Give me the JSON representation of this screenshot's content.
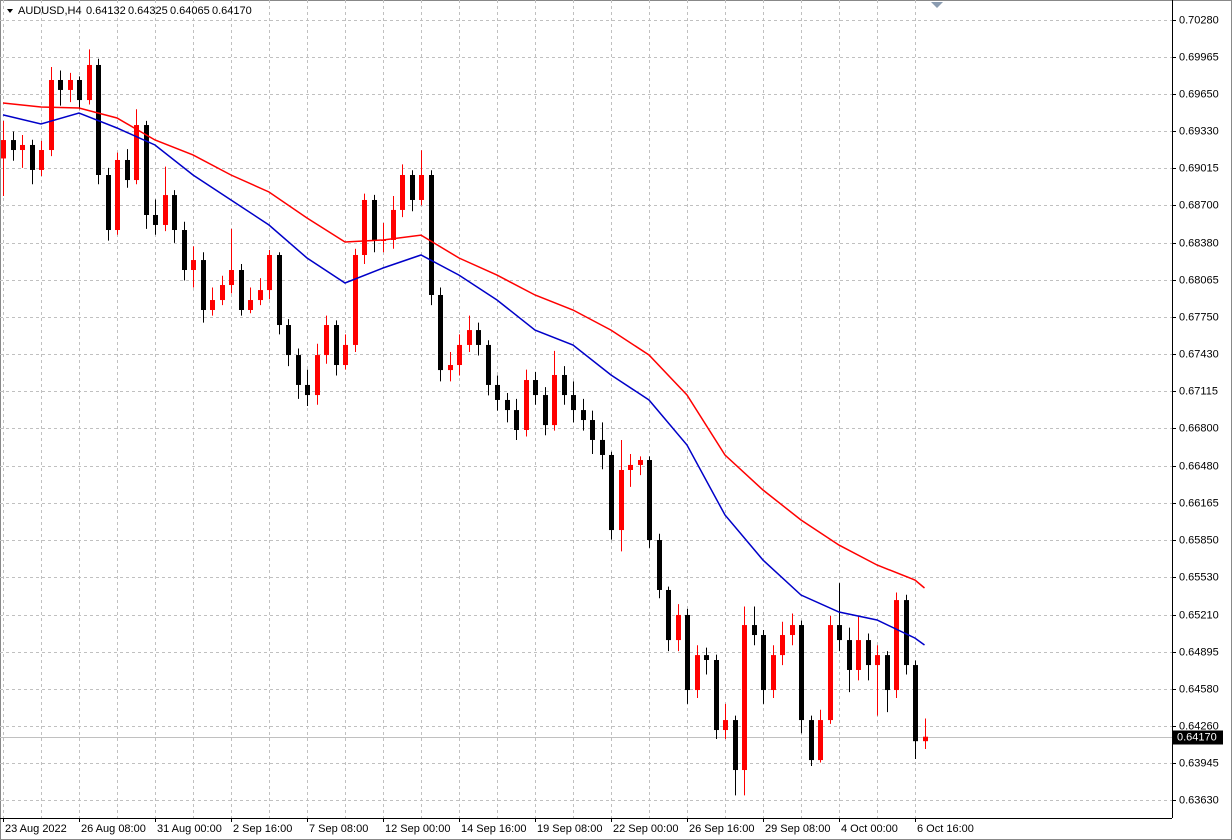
{
  "chart_data": {
    "type": "candlestick",
    "title": "AUDUSD,H4",
    "current_price": {
      "value": 0.6417,
      "label": "0.64170"
    },
    "bull_color": "#ff0000",
    "bear_color": "#000000",
    "grid": true,
    "ylim": [
      0.63477,
      0.70451
    ],
    "yticks": [
      {
        "value": 0.7028,
        "label": "0.70280"
      },
      0.69965,
      {
        "value": 0.6965,
        "label": "0.69650"
      },
      {
        "value": 0.6933,
        "label": "0.69330"
      },
      0.69015,
      {
        "value": 0.687,
        "label": "0.68700"
      },
      {
        "value": 0.6838,
        "label": "0.68380"
      },
      0.68065,
      {
        "value": 0.6775,
        "label": "0.67750"
      },
      {
        "value": 0.6743,
        "label": "0.67430"
      },
      0.67115,
      {
        "value": 0.668,
        "label": "0.66800"
      },
      {
        "value": 0.6648,
        "label": "0.66480"
      },
      0.66165,
      {
        "value": 0.6585,
        "label": "0.65850"
      },
      {
        "value": 0.6553,
        "label": "0.65530"
      },
      {
        "value": 0.6521,
        "label": "0.65210"
      },
      0.64895,
      {
        "value": 0.6458,
        "label": "0.64580"
      },
      {
        "value": 0.6426,
        "label": "0.64260"
      },
      0.63945,
      {
        "value": 0.6363,
        "label": "0.63630"
      }
    ],
    "categories": [
      "23 Aug 2022",
      null,
      null,
      null,
      null,
      null,
      null,
      null,
      "26 Aug 08:00",
      null,
      null,
      null,
      null,
      null,
      null,
      null,
      "31 Aug 00:00",
      null,
      null,
      null,
      null,
      null,
      null,
      null,
      "2 Sep 16:00",
      null,
      null,
      null,
      null,
      null,
      null,
      null,
      "7 Sep 08:00",
      null,
      null,
      null,
      null,
      null,
      null,
      null,
      "12 Sep 00:00",
      null,
      null,
      null,
      null,
      null,
      null,
      null,
      "14 Sep 16:00",
      null,
      null,
      null,
      null,
      null,
      null,
      null,
      "19 Sep 08:00",
      null,
      null,
      null,
      null,
      null,
      null,
      null,
      "22 Sep 00:00",
      null,
      null,
      null,
      null,
      null,
      null,
      null,
      "26 Sep 16:00",
      null,
      null,
      null,
      null,
      null,
      null,
      null,
      "29 Sep 08:00",
      null,
      null,
      null,
      null,
      null,
      null,
      null,
      "4 Oct 00:00",
      null,
      null,
      null,
      null,
      null,
      null,
      null,
      "6 Oct 16:00",
      null
    ],
    "open": [
      0.691,
      0.69257,
      0.69172,
      0.69215,
      0.69002,
      0.69172,
      0.69769,
      0.69684,
      0.69769,
      0.69598,
      0.69897,
      0.68959,
      0.6849,
      0.69087,
      0.68916,
      0.69385,
      0.68618,
      0.68533,
      0.68788,
      0.6849,
      0.68149,
      0.68234,
      0.67808,
      0.67893,
      0.68021,
      0.68149,
      0.67808,
      0.67893,
      0.67978,
      0.68277,
      0.6768,
      0.67424,
      0.67169,
      0.67083,
      0.67424,
      0.6768,
      0.67339,
      0.6751,
      0.68277,
      0.68746,
      0.68405,
      0.68405,
      0.68661,
      0.68959,
      0.68746,
      0.68959,
      0.67936,
      0.67296,
      0.67339,
      0.6751,
      0.67637,
      0.6751,
      0.67169,
      0.67041,
      0.66955,
      0.66785,
      0.67211,
      0.67083,
      0.66827,
      0.67254,
      0.67083,
      0.66955,
      0.6687,
      0.667,
      0.66572,
      0.65932,
      0.66444,
      0.66487,
      0.66529,
      0.65847,
      0.65421,
      0.64994,
      0.65208,
      0.64568,
      0.64866,
      0.64824,
      0.64227,
      0.64312,
      0.63886,
      0.65122,
      0.65037,
      0.64568,
      0.64866,
      0.65037,
      0.65122,
      0.64312,
      0.63971,
      0.64312,
      0.65122,
      0.64994,
      0.64739,
      0.64994,
      0.64781,
      0.64866,
      0.64568,
      0.65335,
      0.64781,
      0.64132
    ],
    "high": [
      0.6942,
      0.6933,
      0.693,
      0.6926,
      0.6925,
      0.6988,
      0.6985,
      0.6983,
      0.698,
      0.7003,
      0.6995,
      0.6902,
      0.6915,
      0.6918,
      0.6952,
      0.6942,
      0.6875,
      0.6903,
      0.6883,
      0.6856,
      0.6835,
      0.683,
      0.68,
      0.681,
      0.685,
      0.682,
      0.68,
      0.6808,
      0.6832,
      0.683,
      0.6773,
      0.6748,
      0.673,
      0.6752,
      0.6776,
      0.6772,
      0.676,
      0.6833,
      0.688,
      0.6879,
      0.6855,
      0.6878,
      0.6905,
      0.69,
      0.6917,
      0.69,
      0.68,
      0.6745,
      0.676,
      0.6776,
      0.677,
      0.6755,
      0.6725,
      0.671,
      0.6705,
      0.673,
      0.6728,
      0.6715,
      0.6746,
      0.6733,
      0.672,
      0.6705,
      0.6695,
      0.6685,
      0.666,
      0.667,
      0.6658,
      0.6656,
      0.6656,
      0.659,
      0.6545,
      0.653,
      0.6526,
      0.6495,
      0.6493,
      0.6487,
      0.6445,
      0.6435,
      0.6528,
      0.6528,
      0.6508,
      0.6495,
      0.6515,
      0.6522,
      0.6516,
      0.6435,
      0.644,
      0.652,
      0.6548,
      0.651,
      0.652,
      0.6505,
      0.6495,
      0.649,
      0.654,
      0.6538,
      0.6482,
      0.64325
    ],
    "low": [
      0.6878,
      0.6908,
      0.6902,
      0.6888,
      0.6895,
      0.6912,
      0.6955,
      0.6958,
      0.6952,
      0.6956,
      0.6888,
      0.684,
      0.6845,
      0.6885,
      0.6888,
      0.685,
      0.6845,
      0.6848,
      0.6838,
      0.6806,
      0.68,
      0.677,
      0.6776,
      0.6785,
      0.6795,
      0.6776,
      0.6778,
      0.6785,
      0.679,
      0.676,
      0.6733,
      0.6705,
      0.6699,
      0.67,
      0.6735,
      0.6725,
      0.673,
      0.6745,
      0.682,
      0.683,
      0.683,
      0.6833,
      0.686,
      0.6865,
      0.687,
      0.6785,
      0.672,
      0.672,
      0.6725,
      0.6745,
      0.6742,
      0.6708,
      0.6695,
      0.6685,
      0.667,
      0.6673,
      0.67,
      0.6674,
      0.6678,
      0.67,
      0.6685,
      0.6678,
      0.6658,
      0.6645,
      0.6585,
      0.6575,
      0.663,
      0.664,
      0.6578,
      0.6535,
      0.649,
      0.649,
      0.6445,
      0.645,
      0.647,
      0.6415,
      0.6415,
      0.6367,
      0.6367,
      0.6495,
      0.6445,
      0.645,
      0.6478,
      0.6495,
      0.642,
      0.6392,
      0.6395,
      0.6428,
      0.649,
      0.6455,
      0.6465,
      0.6465,
      0.6435,
      0.6438,
      0.645,
      0.647,
      0.6398,
      0.64065
    ],
    "close": [
      0.69257,
      0.69172,
      0.69215,
      0.69002,
      0.69172,
      0.69769,
      0.69684,
      0.69769,
      0.69598,
      0.69897,
      0.68959,
      0.6849,
      0.69087,
      0.68916,
      0.69385,
      0.68618,
      0.68533,
      0.68788,
      0.6849,
      0.68149,
      0.68234,
      0.67808,
      0.67893,
      0.68021,
      0.68149,
      0.67808,
      0.67893,
      0.67978,
      0.68277,
      0.6768,
      0.67424,
      0.67169,
      0.67083,
      0.67424,
      0.6768,
      0.67339,
      0.6751,
      0.68277,
      0.68746,
      0.68405,
      0.68405,
      0.68661,
      0.68959,
      0.68746,
      0.68959,
      0.67936,
      0.67296,
      0.67339,
      0.6751,
      0.67637,
      0.6751,
      0.67169,
      0.67041,
      0.66955,
      0.66785,
      0.67211,
      0.67083,
      0.66827,
      0.67254,
      0.67083,
      0.66955,
      0.6687,
      0.667,
      0.66572,
      0.65932,
      0.66444,
      0.66487,
      0.66529,
      0.65847,
      0.65421,
      0.64994,
      0.65208,
      0.64568,
      0.64866,
      0.64824,
      0.64227,
      0.64312,
      0.63886,
      0.65122,
      0.65037,
      0.64568,
      0.64866,
      0.65037,
      0.65122,
      0.64312,
      0.63971,
      0.64312,
      0.65122,
      0.64994,
      0.64739,
      0.64994,
      0.64781,
      0.64866,
      0.64568,
      0.65335,
      0.64781,
      0.64132,
      0.6417
    ],
    "series": [
      {
        "color": "#ff0000",
        "x": [
          0,
          4,
          8,
          12,
          16,
          20,
          24,
          28,
          32,
          36,
          40,
          44,
          48,
          52,
          56,
          60,
          64,
          68,
          72,
          76,
          80,
          84,
          88,
          92,
          96,
          97
        ],
        "values": [
          0.69573,
          0.69539,
          0.6953,
          0.69445,
          0.69257,
          0.6913,
          0.68959,
          0.68814,
          0.68592,
          0.68388,
          0.68405,
          0.68447,
          0.68251,
          0.68106,
          0.67936,
          0.67808,
          0.67637,
          0.67424,
          0.67083,
          0.66572,
          0.66273,
          0.66018,
          0.65804,
          0.65634,
          0.65506,
          0.65438
        ]
      },
      {
        "color": "#0000c8",
        "x": [
          0,
          4,
          8,
          12,
          16,
          20,
          24,
          28,
          32,
          36,
          40,
          44,
          48,
          52,
          56,
          60,
          64,
          68,
          72,
          76,
          80,
          84,
          88,
          92,
          96,
          97
        ],
        "values": [
          0.69471,
          0.69394,
          0.69488,
          0.6936,
          0.69215,
          0.68959,
          0.68746,
          0.68533,
          0.68251,
          0.68038,
          0.68166,
          0.68277,
          0.68106,
          0.67893,
          0.67637,
          0.6751,
          0.67254,
          0.67041,
          0.66657,
          0.6606,
          0.65676,
          0.65378,
          0.65233,
          0.65165,
          0.65011,
          0.64952
        ]
      }
    ]
  }
}
